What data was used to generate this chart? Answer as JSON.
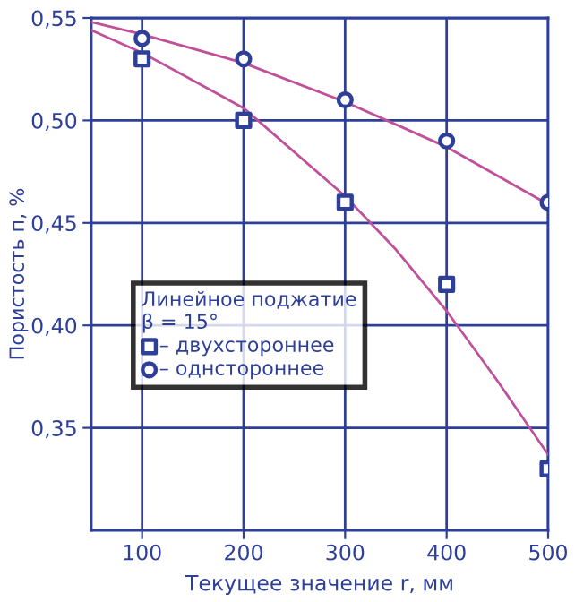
{
  "chart_data": {
    "type": "scatter",
    "xlabel": "Текущее значение r, мм",
    "ylabel": "Пористость п, %",
    "legend_title": "Линейное поджатие\nβ = 15°",
    "x": [
      100,
      200,
      300,
      400,
      500
    ],
    "series": [
      {
        "name": "– двухстороннее",
        "color": "#2e3f99",
        "marker": "square",
        "values": [
          0.53,
          0.5,
          0.46,
          0.42,
          0.33
        ]
      },
      {
        "name": "– однстороннее",
        "color": "#2e3f99",
        "marker": "circle",
        "values": [
          0.54,
          0.53,
          0.51,
          0.49,
          0.46
        ]
      },
      {
        "type": "line",
        "color": "#c0509a",
        "x": [
          50,
          100,
          200,
          300,
          400,
          500
        ],
        "values": [
          0.548,
          0.542,
          0.528,
          0.509,
          0.487,
          0.459
        ]
      },
      {
        "type": "line",
        "color": "#c0509a",
        "x": [
          50,
          100,
          200,
          300,
          350,
          400,
          450,
          500
        ],
        "values": [
          0.544,
          0.533,
          0.506,
          0.463,
          0.437,
          0.407,
          0.373,
          0.337
        ]
      }
    ],
    "xlim": [
      50,
      500
    ],
    "xticks": [
      100,
      200,
      300,
      400,
      500
    ],
    "ylim": [
      0.3,
      0.55
    ],
    "yticks": [
      {
        "value": 0.35,
        "label": "0,35"
      },
      {
        "value": 0.4,
        "label": "0,40"
      },
      {
        "value": 0.45,
        "label": "0,45"
      },
      {
        "value": 0.5,
        "label": "0,50"
      },
      {
        "value": 0.55,
        "label": "0,55"
      }
    ],
    "grid": true,
    "legend": "center left"
  }
}
